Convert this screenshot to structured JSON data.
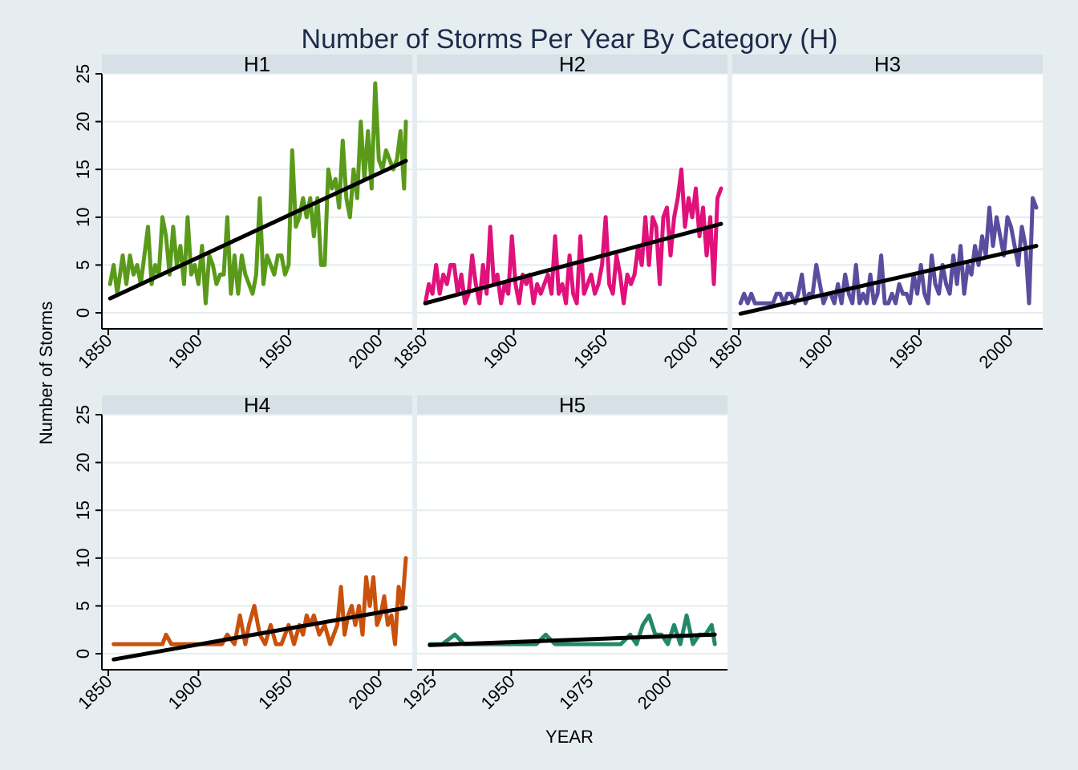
{
  "chart_data": {
    "type": "line",
    "title": "Number of Storms Per Year By Category (H)",
    "xlabel": "YEAR",
    "ylabel": "Number of Storms",
    "ylim": [
      0,
      25
    ],
    "yticks": [
      "0",
      "5",
      "10",
      "15",
      "20",
      "25"
    ],
    "grid": true,
    "panels": [
      {
        "name": "H1",
        "color": "#5a9a1a",
        "xlim": [
          1850,
          2015
        ],
        "xticks": [
          "1850",
          "1900",
          "1950",
          "2000"
        ],
        "trend": [
          [
            1851,
            1.5
          ],
          [
            2015,
            15.9
          ]
        ],
        "x": [
          1851,
          1853,
          1855,
          1858,
          1860,
          1862,
          1864,
          1866,
          1868,
          1870,
          1872,
          1874,
          1876,
          1878,
          1880,
          1882,
          1884,
          1886,
          1888,
          1890,
          1892,
          1894,
          1896,
          1898,
          1900,
          1902,
          1904,
          1906,
          1908,
          1910,
          1912,
          1914,
          1916,
          1918,
          1920,
          1922,
          1924,
          1926,
          1928,
          1930,
          1932,
          1934,
          1936,
          1938,
          1940,
          1942,
          1944,
          1946,
          1948,
          1950,
          1952,
          1954,
          1956,
          1958,
          1960,
          1962,
          1964,
          1966,
          1968,
          1970,
          1972,
          1974,
          1976,
          1978,
          1980,
          1982,
          1984,
          1986,
          1988,
          1990,
          1992,
          1994,
          1996,
          1998,
          2000,
          2002,
          2004,
          2006,
          2008,
          2010,
          2012,
          2014,
          2015
        ],
        "y": [
          3,
          5,
          2,
          6,
          3,
          6,
          4,
          5,
          3,
          6,
          9,
          3,
          5,
          4,
          10,
          8,
          4,
          9,
          5,
          7,
          3,
          10,
          4,
          5,
          3,
          7,
          1,
          6,
          5,
          3,
          4,
          4,
          10,
          2,
          6,
          2,
          6,
          4,
          3,
          2,
          4,
          12,
          3,
          6,
          5,
          4,
          6,
          6,
          4,
          5,
          17,
          9,
          10,
          12,
          10,
          12,
          8,
          12,
          5,
          5,
          15,
          13,
          14,
          11,
          18,
          12,
          10,
          15,
          12,
          20,
          14,
          19,
          13,
          24,
          16,
          15,
          17,
          16,
          15,
          16,
          19,
          13,
          20
        ]
      },
      {
        "name": "H2",
        "color": "#e0117b",
        "xlim": [
          1850,
          2015
        ],
        "xticks": [
          "1850",
          "1900",
          "1950",
          "2000"
        ],
        "trend": [
          [
            1851,
            1.0
          ],
          [
            2015,
            9.3
          ]
        ],
        "x": [
          1851,
          1853,
          1855,
          1857,
          1859,
          1861,
          1863,
          1865,
          1867,
          1869,
          1871,
          1873,
          1875,
          1877,
          1879,
          1881,
          1883,
          1885,
          1887,
          1889,
          1891,
          1893,
          1895,
          1897,
          1899,
          1901,
          1903,
          1905,
          1907,
          1909,
          1911,
          1913,
          1915,
          1917,
          1919,
          1921,
          1923,
          1925,
          1927,
          1929,
          1931,
          1933,
          1935,
          1937,
          1939,
          1941,
          1943,
          1945,
          1947,
          1949,
          1951,
          1953,
          1955,
          1957,
          1959,
          1961,
          1963,
          1965,
          1967,
          1969,
          1971,
          1973,
          1975,
          1977,
          1979,
          1981,
          1983,
          1985,
          1987,
          1989,
          1991,
          1993,
          1995,
          1997,
          1999,
          2001,
          2003,
          2005,
          2007,
          2009,
          2011,
          2013,
          2015
        ],
        "y": [
          1,
          3,
          2,
          5,
          2,
          4,
          3,
          5,
          5,
          2,
          4,
          1,
          2,
          6,
          3,
          1,
          5,
          2,
          9,
          3,
          4,
          1,
          3,
          2,
          8,
          3,
          1,
          4,
          3,
          4,
          1,
          3,
          2,
          3,
          4,
          2,
          8,
          2,
          3,
          1,
          6,
          2,
          1,
          8,
          2,
          3,
          4,
          2,
          3,
          5,
          10,
          3,
          2,
          6,
          4,
          1,
          4,
          3,
          4,
          7,
          5,
          10,
          5,
          10,
          9,
          3,
          10,
          11,
          6,
          10,
          12,
          15,
          9,
          12,
          10,
          13,
          8,
          11,
          6,
          10,
          3,
          12,
          13
        ]
      },
      {
        "name": "H3",
        "color": "#5b4d9e",
        "xlim": [
          1850,
          2015
        ],
        "xticks": [
          "1850",
          "1900",
          "1950",
          "2000"
        ],
        "trend": [
          [
            1851,
            -0.1
          ],
          [
            2015,
            7.0
          ]
        ],
        "x": [
          1851,
          1853,
          1855,
          1857,
          1859,
          1861,
          1863,
          1865,
          1867,
          1869,
          1871,
          1873,
          1875,
          1877,
          1879,
          1881,
          1883,
          1885,
          1887,
          1889,
          1891,
          1893,
          1895,
          1897,
          1899,
          1901,
          1903,
          1905,
          1907,
          1909,
          1911,
          1913,
          1915,
          1917,
          1919,
          1921,
          1923,
          1925,
          1927,
          1929,
          1931,
          1933,
          1935,
          1937,
          1939,
          1941,
          1943,
          1945,
          1947,
          1949,
          1951,
          1953,
          1955,
          1957,
          1959,
          1961,
          1963,
          1965,
          1967,
          1969,
          1971,
          1973,
          1975,
          1977,
          1979,
          1981,
          1983,
          1985,
          1987,
          1989,
          1991,
          1993,
          1995,
          1997,
          1999,
          2001,
          2003,
          2005,
          2007,
          2009,
          2011,
          2013,
          2015
        ],
        "y": [
          1,
          2,
          1,
          2,
          1,
          1,
          1,
          1,
          1,
          1,
          2,
          2,
          1,
          2,
          2,
          1,
          2,
          4,
          1,
          2,
          2,
          5,
          3,
          1,
          2,
          2,
          1,
          3,
          1,
          4,
          2,
          1,
          5,
          1,
          2,
          1,
          4,
          1,
          2,
          6,
          1,
          1,
          2,
          1,
          3,
          2,
          2,
          1,
          4,
          2,
          5,
          2,
          1,
          6,
          3,
          2,
          5,
          3,
          2,
          6,
          3,
          7,
          2,
          5,
          4,
          7,
          5,
          8,
          6,
          11,
          7,
          10,
          8,
          6,
          10,
          9,
          7,
          5,
          9,
          7,
          1,
          12,
          11
        ]
      },
      {
        "name": "H4",
        "color": "#c9510c",
        "xlim": [
          1850,
          2015
        ],
        "xticks": [
          "1850",
          "1900",
          "1950",
          "2000"
        ],
        "trend": [
          [
            1853,
            -0.6
          ],
          [
            2015,
            4.8
          ]
        ],
        "x": [
          1853,
          1856,
          1860,
          1864,
          1868,
          1872,
          1876,
          1880,
          1882,
          1885,
          1890,
          1895,
          1900,
          1905,
          1910,
          1913,
          1916,
          1920,
          1923,
          1926,
          1928,
          1931,
          1934,
          1937,
          1940,
          1943,
          1946,
          1948,
          1950,
          1953,
          1956,
          1958,
          1960,
          1962,
          1964,
          1967,
          1970,
          1973,
          1975,
          1977,
          1979,
          1981,
          1983,
          1985,
          1987,
          1989,
          1991,
          1993,
          1995,
          1997,
          1999,
          2001,
          2003,
          2005,
          2007,
          2009,
          2011,
          2013,
          2015
        ],
        "y": [
          1,
          1,
          1,
          1,
          1,
          1,
          1,
          1,
          2,
          1,
          1,
          1,
          1,
          1,
          1,
          1,
          2,
          1,
          4,
          1,
          3,
          5,
          2,
          1,
          3,
          1,
          1,
          2,
          3,
          1,
          3,
          2,
          4,
          3,
          4,
          2,
          3,
          1,
          2,
          3,
          7,
          2,
          4,
          5,
          3,
          5,
          2,
          8,
          5,
          8,
          3,
          4,
          6,
          3,
          4,
          1,
          7,
          5,
          10
        ]
      },
      {
        "name": "H5",
        "color": "#23886a",
        "xlim": [
          1922,
          2017
        ],
        "xticks": [
          "1925",
          "1950",
          "1975",
          "2000"
        ],
        "trend": [
          [
            1924,
            0.9
          ],
          [
            2015,
            2.0
          ]
        ],
        "x": [
          1924,
          1928,
          1932,
          1935,
          1940,
          1945,
          1950,
          1955,
          1958,
          1961,
          1964,
          1970,
          1975,
          1980,
          1985,
          1988,
          1990,
          1992,
          1994,
          1996,
          1998,
          2000,
          2002,
          2004,
          2006,
          2008,
          2010,
          2012,
          2014,
          2015
        ],
        "y": [
          1,
          1,
          2,
          1,
          1,
          1,
          1,
          1,
          1,
          2,
          1,
          1,
          1,
          1,
          1,
          2,
          1,
          3,
          4,
          2,
          2,
          1,
          3,
          1,
          4,
          1,
          2,
          2,
          3,
          1
        ]
      }
    ]
  }
}
